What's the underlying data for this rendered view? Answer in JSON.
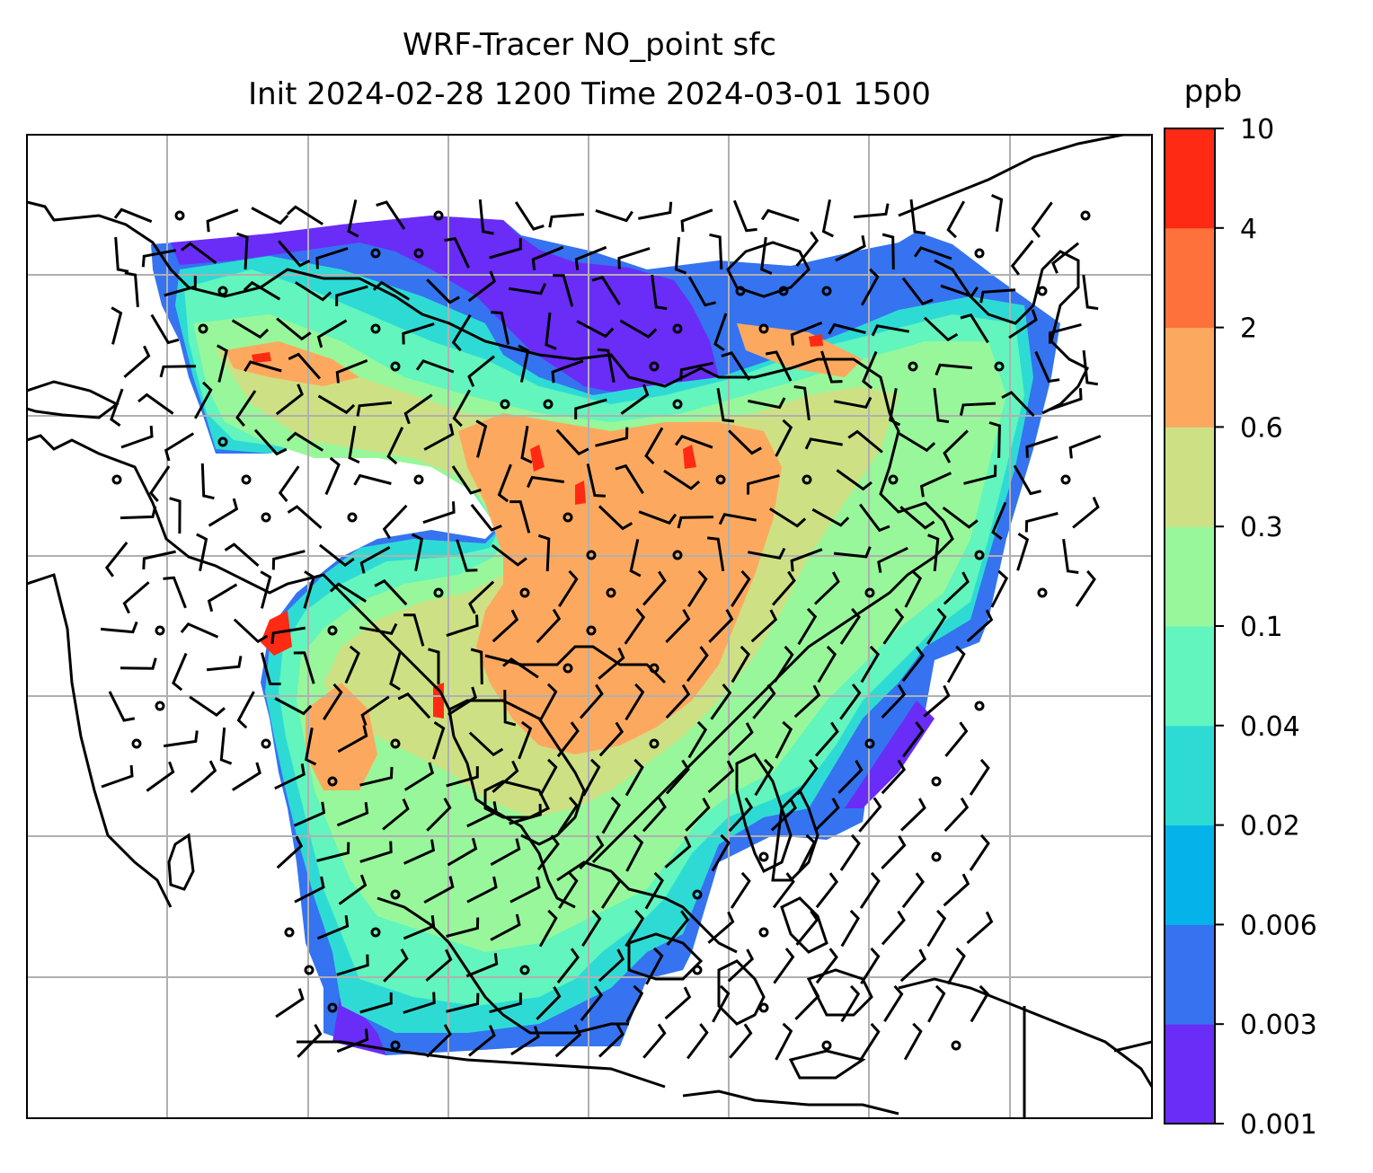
{
  "title": {
    "line1": "WRF-Tracer NO_point sfc",
    "line2": "Init 2024-02-28 1200 Time 2024-03-01 1500"
  },
  "colorbar": {
    "label": "ppb",
    "ticks": [
      "0.001",
      "0.003",
      "0.006",
      "0.02",
      "0.04",
      "0.1",
      "0.3",
      "0.6",
      "2",
      "4",
      "10"
    ],
    "colors": [
      "#6a2cf7",
      "#3573f0",
      "#05b3ea",
      "#2edbd4",
      "#62f5bd",
      "#98f79a",
      "#cde184",
      "#fca95f",
      "#fe713a",
      "#ff2a13"
    ]
  },
  "map": {
    "background": "#ffffff",
    "gridline_color": "#b0b0b0",
    "coastline_color": "#000000"
  }
}
